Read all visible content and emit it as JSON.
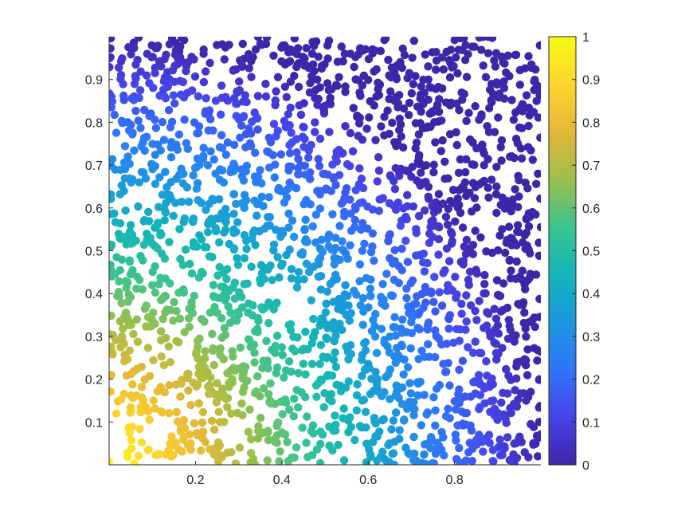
{
  "chart_data": {
    "type": "scatter",
    "title": "",
    "xlabel": "",
    "ylabel": "",
    "xlim": [
      0,
      1
    ],
    "ylim": [
      0,
      1
    ],
    "x_ticks": [
      {
        "value": 0.2,
        "label": "0.2"
      },
      {
        "value": 0.4,
        "label": "0.4"
      },
      {
        "value": 0.6,
        "label": "0.6"
      },
      {
        "value": 0.8,
        "label": "0.8"
      }
    ],
    "y_ticks": [
      {
        "value": 0.1,
        "label": "0.1"
      },
      {
        "value": 0.2,
        "label": "0.2"
      },
      {
        "value": 0.3,
        "label": "0.3"
      },
      {
        "value": 0.4,
        "label": "0.4"
      },
      {
        "value": 0.5,
        "label": "0.5"
      },
      {
        "value": 0.6,
        "label": "0.6"
      },
      {
        "value": 0.7,
        "label": "0.7"
      },
      {
        "value": 0.8,
        "label": "0.8"
      },
      {
        "value": 0.9,
        "label": "0.9"
      }
    ],
    "grid": false,
    "colormap": "parula",
    "colorbar": {
      "position": "right",
      "range": [
        0,
        1
      ],
      "colors": [
        "#3E26A8",
        "#4744E9",
        "#2F75F9",
        "#1D97DF",
        "#13B5B8",
        "#3CC38F",
        "#9BBF4B",
        "#E5B838",
        "#FDD52E",
        "#F9FB15"
      ],
      "ticks": [
        {
          "value": 0,
          "label": "0"
        },
        {
          "value": 0.1,
          "label": "0.1"
        },
        {
          "value": 0.2,
          "label": "0.2"
        },
        {
          "value": 0.3,
          "label": "0.3"
        },
        {
          "value": 0.4,
          "label": "0.4"
        },
        {
          "value": 0.5,
          "label": "0.5"
        },
        {
          "value": 0.6,
          "label": "0.6"
        },
        {
          "value": 0.7,
          "label": "0.7"
        },
        {
          "value": 0.8,
          "label": "0.8"
        },
        {
          "value": 0.9,
          "label": "0.9"
        },
        {
          "value": 1,
          "label": "1"
        }
      ]
    },
    "point_count": 2200,
    "point_value": "distance_from_corner",
    "point_color_note": "color ≈ 1 - distance from (0,0) corner"
  }
}
